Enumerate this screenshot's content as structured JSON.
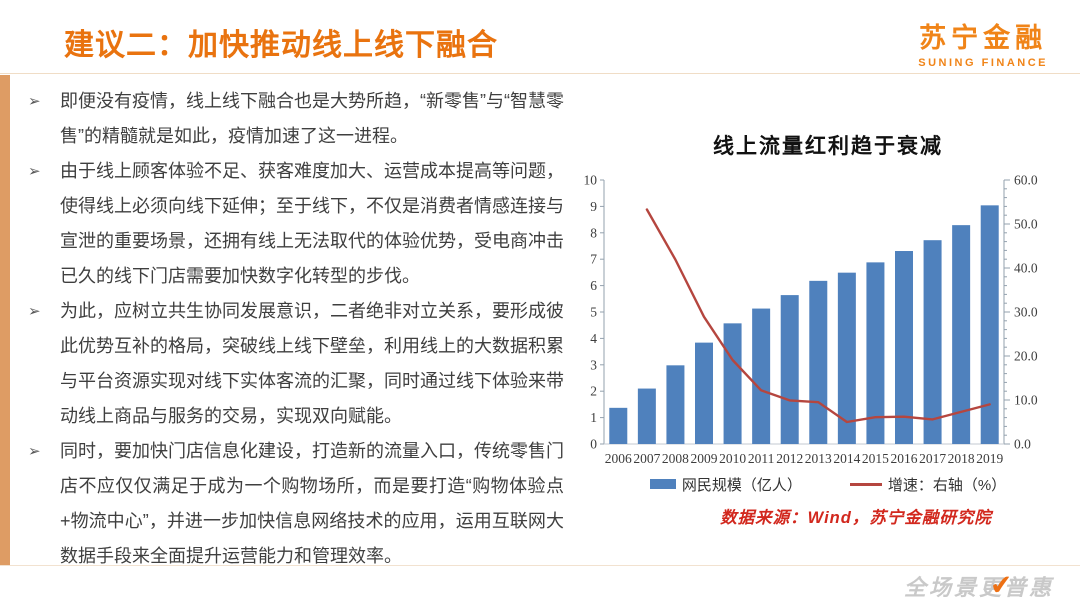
{
  "header": {
    "title": "建议二：加快推动线上线下融合",
    "logo_cn": "苏宁金融",
    "logo_en": "SUNING FINANCE"
  },
  "bullet_marker": "➢",
  "bullets": [
    "即便没有疫情，线上线下融合也是大势所趋，“新零售”与“智慧零售”的精髓就是如此，疫情加速了这一进程。",
    "由于线上顾客体验不足、获客难度加大、运营成本提高等问题，使得线上必须向线下延伸；至于线下，不仅是消费者情感连接与宣泄的重要场景，还拥有线上无法取代的体验优势，受电商冲击已久的线下门店需要加快数字化转型的步伐。",
    "为此，应树立共生协同发展意识，二者绝非对立关系，要形成彼此优势互补的格局，突破线上线下壁垒，利用线上的大数据积累与平台资源实现对线下实体客流的汇聚，同时通过线下体验来带动线上商品与服务的交易，实现双向赋能。",
    "同时，要加快门店信息化建设，打造新的流量入口，传统零售门店不应仅仅满足于成为一个购物场所，而是要打造“购物体验点+物流中心”，并进一步加快信息网络技术的应用，运用互联网大数据手段来全面提升运营能力和管理效率。"
  ],
  "chart": {
    "source": "数据来源：Wind，苏宁金融研究院"
  },
  "chart_data": {
    "type": "bar+line",
    "title": "线上流量红利趋于衰减",
    "categories": [
      "2006",
      "2007",
      "2008",
      "2009",
      "2010",
      "2011",
      "2012",
      "2013",
      "2014",
      "2015",
      "2016",
      "2017",
      "2018",
      "2019"
    ],
    "series": [
      {
        "name": "网民规模（亿人）",
        "type": "bar",
        "axis": "left",
        "color": "#4F81BD",
        "values": [
          1.37,
          2.1,
          2.98,
          3.84,
          4.57,
          5.13,
          5.64,
          6.18,
          6.49,
          6.88,
          7.31,
          7.72,
          8.29,
          9.04
        ]
      },
      {
        "name": "增速：右轴（%）",
        "type": "line",
        "axis": "right",
        "color": "#B5463F",
        "values": [
          null,
          53.3,
          41.9,
          28.9,
          19.1,
          12.2,
          9.9,
          9.5,
          5.0,
          6.1,
          6.2,
          5.6,
          7.3,
          9.0
        ]
      }
    ],
    "left_axis": {
      "min": 0,
      "max": 10,
      "step": 1,
      "tick_labels": [
        "0",
        "1",
        "2",
        "3",
        "4",
        "5",
        "6",
        "7",
        "8",
        "9",
        "10"
      ]
    },
    "right_axis": {
      "min": 0,
      "max": 60,
      "step": 10,
      "minor_step": 2,
      "tick_labels": [
        "0.0",
        "10.0",
        "20.0",
        "30.0",
        "40.0",
        "50.0",
        "60.0"
      ]
    },
    "legend_position": "bottom",
    "grid": false
  },
  "footer": {
    "watermark": "全场景更普惠",
    "watermark_check": "✔"
  }
}
